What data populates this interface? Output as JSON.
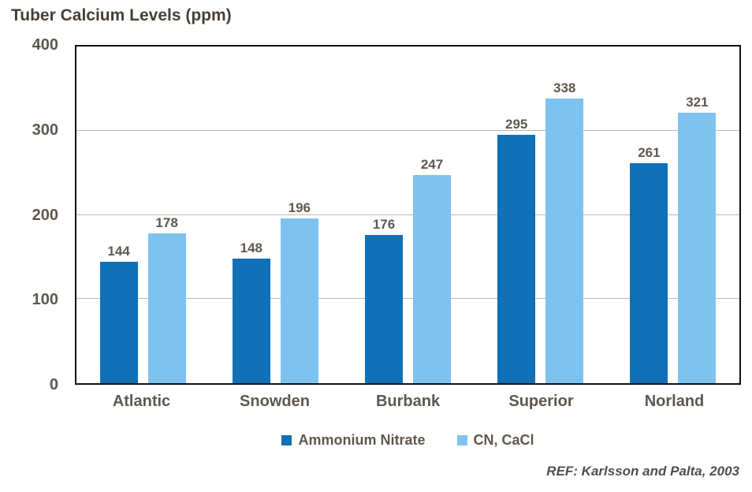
{
  "title": "Tuber Calcium Levels (ppm)",
  "chart_data": {
    "type": "bar",
    "title": "Tuber Calcium Levels (ppm)",
    "categories": [
      "Atlantic",
      "Snowden",
      "Burbank",
      "Superior",
      "Norland"
    ],
    "series": [
      {
        "name": "Ammonium Nitrate",
        "color": "#1070b8",
        "values": [
          144,
          148,
          176,
          295,
          261
        ]
      },
      {
        "name": "CN, CaCl",
        "color": "#7ec3f0",
        "values": [
          178,
          196,
          247,
          338,
          321
        ]
      }
    ],
    "xlabel": "",
    "ylabel": "",
    "ylim": [
      0,
      400
    ],
    "ytick_step": 100,
    "grid": true,
    "legend_position": "bottom"
  },
  "footer": {
    "ref_text": "REF: Karlsson and Palta, 2003"
  },
  "colors": {
    "series1": "#1070b8",
    "series2": "#7ec3f0",
    "text": "#5f574e",
    "gridline": "#b9b9b9",
    "plot_border": "#111111"
  }
}
